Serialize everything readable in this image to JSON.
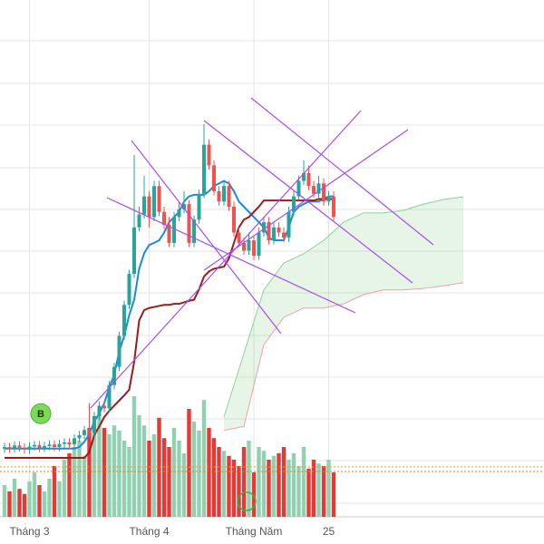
{
  "chart_data": {
    "type": "candlestick",
    "categories": [
      null,
      null,
      null,
      null,
      null,
      "Tháng 3",
      null,
      null,
      null,
      null,
      null,
      null,
      null,
      null,
      null,
      null,
      null,
      null,
      null,
      null,
      null,
      null,
      null,
      null,
      null,
      null,
      null,
      null,
      null,
      "Tháng 4",
      null,
      null,
      null,
      null,
      null,
      null,
      null,
      null,
      null,
      null,
      null,
      null,
      null,
      null,
      null,
      null,
      null,
      null,
      null,
      null,
      "Tháng Năm",
      null,
      null,
      null,
      null,
      null,
      null,
      null,
      null,
      null,
      null,
      null,
      null,
      null,
      null,
      "25",
      null
    ],
    "open": [
      13.2,
      13.5,
      13.2,
      13.8,
      13.4,
      13.0,
      13.6,
      13.9,
      13.3,
      13.7,
      14.0,
      13.5,
      14.1,
      14.4,
      14.0,
      15.2,
      15.8,
      16.8,
      16.2,
      19.5,
      21.5,
      21.0,
      25.5,
      29.0,
      35.0,
      41.0,
      47.0,
      56.0,
      58.5,
      62.0,
      58.0,
      64.0,
      59.0,
      56.5,
      53.0,
      58.0,
      59.5,
      60.5,
      53.0,
      57.5,
      62.5,
      72.0,
      68.0,
      63.0,
      61.0,
      64.0,
      60.0,
      55.0,
      53.0,
      51.5,
      53.5,
      50.5,
      55.0,
      57.0,
      53.5,
      56.0,
      55.0,
      54.0,
      59.0,
      62.0,
      65.0,
      66.5,
      64.0,
      62.5,
      64.5,
      61.0,
      62.0
    ],
    "high": [
      14.3,
      14.3,
      14.6,
      14.6,
      14.2,
      14.4,
      14.7,
      14.7,
      14.5,
      14.8,
      14.8,
      14.9,
      15.2,
      15.2,
      16.0,
      16.6,
      17.6,
      22,
      20.3,
      22.3,
      22.3,
      26.3,
      29.8,
      35.8,
      41.8,
      47.8,
      70,
      60,
      66,
      63,
      65,
      65,
      60,
      58,
      59,
      61,
      63,
      61.3,
      58.3,
      63.3,
      76,
      73,
      69,
      64,
      65,
      65,
      61,
      56,
      54,
      55,
      54.3,
      56,
      58,
      58,
      57,
      57,
      56,
      60,
      63,
      66,
      69,
      68,
      65,
      66,
      65.5,
      63,
      63
    ],
    "low": [
      12.4,
      12.4,
      12.4,
      12.6,
      12.2,
      12.2,
      12.8,
      12.5,
      12.5,
      12.9,
      12.7,
      12.7,
      13.3,
      13.2,
      13.2,
      14.4,
      15,
      15.4,
      15.4,
      18.7,
      20.2,
      20.2,
      24.7,
      28.2,
      34.2,
      40.2,
      46.2,
      55.2,
      57.7,
      56,
      57.2,
      58.2,
      55.7,
      52.2,
      52.2,
      57.2,
      58.7,
      52.2,
      52.2,
      56.7,
      61.7,
      67.2,
      62.2,
      60.2,
      60.2,
      59.2,
      54.2,
      52.2,
      50.7,
      50.7,
      49.7,
      49.7,
      54.2,
      52.7,
      52.7,
      54.2,
      53.2,
      53.2,
      58.2,
      61.2,
      64.2,
      63.2,
      61.7,
      61.7,
      60.2,
      60.2,
      57.2
    ],
    "close": [
      13.5,
      13.2,
      13.8,
      13.4,
      13.0,
      13.6,
      13.9,
      13.3,
      13.7,
      14.0,
      13.5,
      14.1,
      14.4,
      14.0,
      15.2,
      15.8,
      16.8,
      16.2,
      19.5,
      21.5,
      21.0,
      25.5,
      29.0,
      35.0,
      41.0,
      47.0,
      56.0,
      58.5,
      62.0,
      58.0,
      64.0,
      59.0,
      56.5,
      53.0,
      58.0,
      59.5,
      60.5,
      53.0,
      57.5,
      62.5,
      72.0,
      68.0,
      63.0,
      61.0,
      64.0,
      60.0,
      55.0,
      53.0,
      51.5,
      53.5,
      50.5,
      55.0,
      57.0,
      53.5,
      56.0,
      55.0,
      54.0,
      59.0,
      62.0,
      65.0,
      66.5,
      64.0,
      62.5,
      64.5,
      61.0,
      62.0,
      58.0
    ],
    "volume": [
      25,
      20,
      30,
      22,
      18,
      28,
      35,
      25,
      20,
      30,
      40,
      28,
      45,
      50,
      55,
      60,
      48,
      70,
      75,
      80,
      70,
      65,
      72,
      68,
      60,
      55,
      95,
      80,
      72,
      60,
      65,
      78,
      62,
      55,
      70,
      60,
      50,
      85,
      75,
      68,
      92,
      70,
      62,
      55,
      52,
      48,
      45,
      40,
      55,
      60,
      35,
      55,
      52,
      45,
      48,
      50,
      55,
      45,
      50,
      40,
      55,
      38,
      45,
      42,
      40,
      45,
      35
    ],
    "lines": [
      {
        "color": "#1e88e5",
        "values": [
          13.2,
          13.2,
          13.2,
          13.2,
          13.2,
          13.2,
          13.2,
          13.2,
          13.2,
          13.2,
          13.2,
          13.2,
          13.2,
          13.2,
          13.2,
          13.5,
          14.5,
          16,
          18.5,
          20,
          22,
          25,
          27.5,
          32,
          35,
          39,
          42,
          48,
          51,
          52.6,
          53,
          53.5,
          55,
          57,
          58,
          59,
          61,
          62,
          62.3,
          62.3,
          62.3,
          63,
          64,
          64.5,
          65,
          64.5,
          63,
          61,
          60,
          59,
          58,
          57,
          56,
          54,
          53.5,
          53.5,
          53.5,
          56,
          59,
          60,
          60.5,
          61,
          61,
          61,
          61.5,
          62,
          62
        ]
      },
      {
        "color": "#9b1b1b",
        "values": [
          11.4,
          11.4,
          11.4,
          11.4,
          11.4,
          11.4,
          11.4,
          11.4,
          11.4,
          11.4,
          11.4,
          11.4,
          11.4,
          11.4,
          11.4,
          11.4,
          11.4,
          12.5,
          15.8,
          17.5,
          19.3,
          20.5,
          21.5,
          22.5,
          23.5,
          24.6,
          30,
          38,
          40,
          40.4,
          40.6,
          40.8,
          41,
          41,
          41.2,
          41.2,
          41.5,
          41.8,
          42,
          44,
          46.5,
          47.5,
          48,
          48.2,
          48.4,
          50,
          53,
          56,
          57.5,
          58,
          59,
          60,
          61.2,
          61.2,
          61.2,
          61.2,
          61.2,
          61.2,
          61.2,
          61.2,
          61.2,
          61.2,
          61.2,
          61.5,
          61.5,
          61.5,
          61.5
        ]
      }
    ],
    "cloud": {
      "x": [
        44,
        48,
        52,
        56,
        60,
        64,
        68,
        72,
        76,
        80,
        84,
        88,
        92
      ],
      "span_a": [
        19.3,
        31.6,
        43.9,
        49.1,
        50.9,
        53.5,
        57.0,
        58.8,
        58.8,
        59.3,
        60.5,
        61.4,
        61.9
      ],
      "span_b": [
        16.7,
        17.5,
        33.3,
        38.6,
        40.4,
        40.4,
        41.2,
        43.0,
        43.9,
        43.9,
        44.2,
        44.7,
        45.3
      ]
    },
    "up_color": "#26a69a",
    "down_color": "#ef5350",
    "volume_up_color": "#8fd1b0",
    "volume_down_color": "#e53935",
    "ylim": [
      0,
      100
    ],
    "volume_lim": [
      0,
      100
    ],
    "markers": [
      {
        "index": 6,
        "label": "B"
      }
    ]
  }
}
